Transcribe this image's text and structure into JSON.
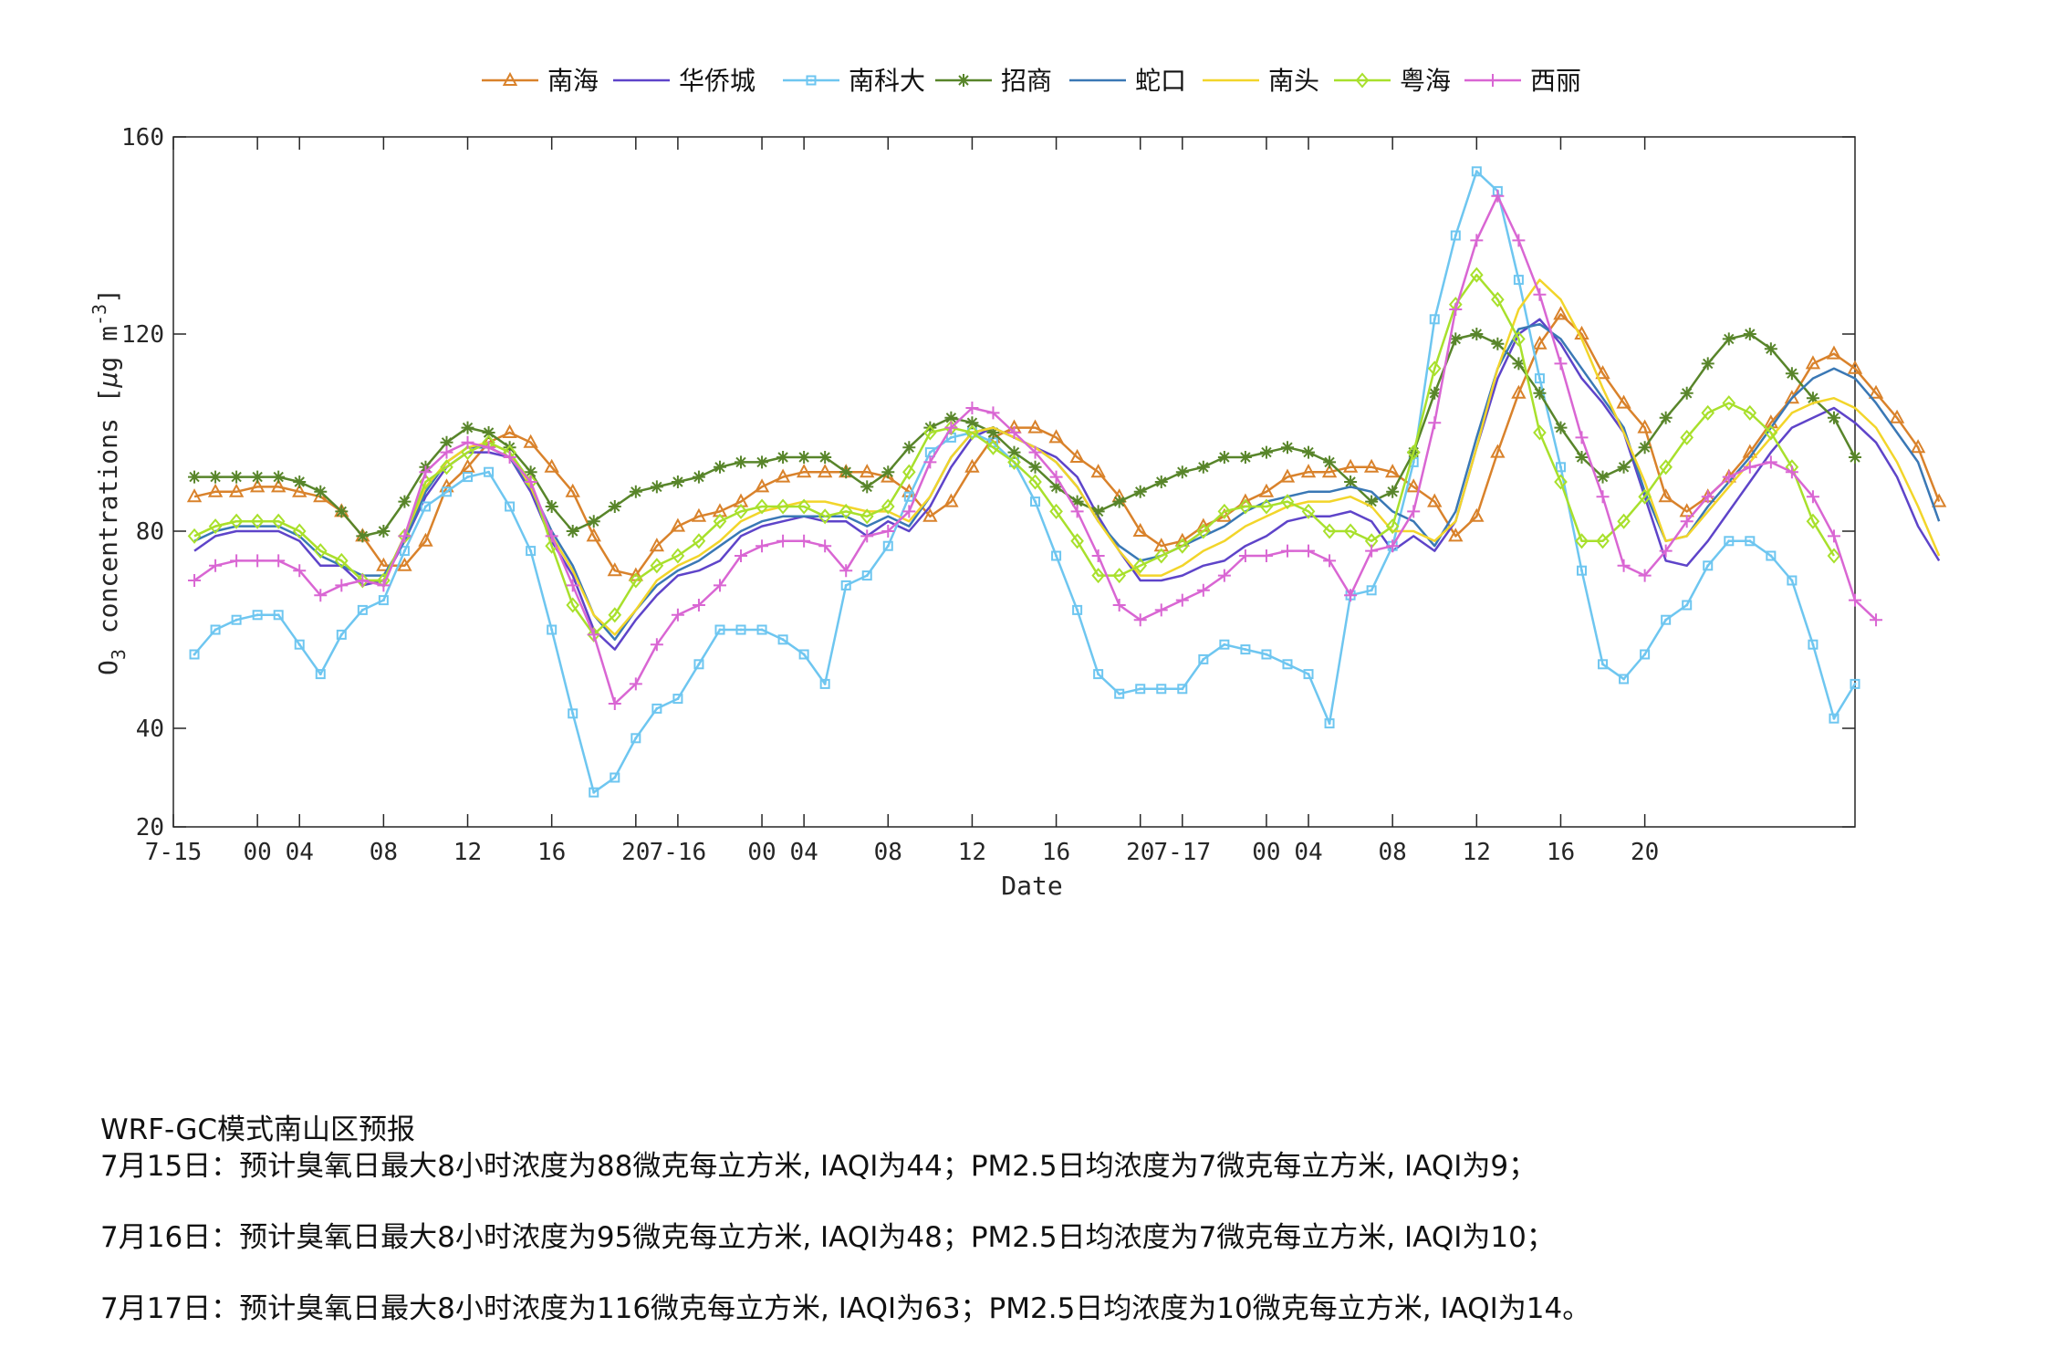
{
  "chart_data": {
    "type": "line",
    "title": "",
    "xlabel": "Date",
    "ylabel": "O",
    "ylabel_sub": "3",
    "ylabel_rest": " concentrations [",
    "ylabel_mu": "μ",
    "ylabel_unit": "g m",
    "ylabel_sup": "-3",
    "ylabel_close": "]",
    "ylim": [
      20,
      160
    ],
    "yticks": [
      20,
      40,
      80,
      120,
      160
    ],
    "xlim": [
      0,
      80
    ],
    "xticks": [
      {
        "x": 0,
        "label": "7-15"
      },
      {
        "x": 4,
        "label": "00"
      },
      {
        "x": 6,
        "label": "04"
      },
      {
        "x": 10,
        "label": "08"
      },
      {
        "x": 14,
        "label": "12"
      },
      {
        "x": 18,
        "label": "16"
      },
      {
        "x": 22,
        "label": "20"
      },
      {
        "x": 24,
        "label": "7-16"
      },
      {
        "x": 28,
        "label": "00"
      },
      {
        "x": 30,
        "label": "04"
      },
      {
        "x": 34,
        "label": "08"
      },
      {
        "x": 38,
        "label": "12"
      },
      {
        "x": 42,
        "label": "16"
      },
      {
        "x": 46,
        "label": "20"
      },
      {
        "x": 48,
        "label": "7-17"
      },
      {
        "x": 52,
        "label": "00"
      },
      {
        "x": 54,
        "label": "04"
      },
      {
        "x": 58,
        "label": "08"
      },
      {
        "x": 62,
        "label": "12"
      },
      {
        "x": 66,
        "label": "16"
      },
      {
        "x": 70,
        "label": "20"
      }
    ],
    "grid": false,
    "legend_position": "top-center",
    "x_start": 1,
    "series": [
      {
        "name": "南海",
        "color": "#D9822B",
        "marker": "triangle",
        "values": [
          87,
          88,
          88,
          89,
          89,
          88,
          87,
          84,
          79,
          73,
          73,
          78,
          89,
          93,
          98,
          100,
          98,
          93,
          88,
          79,
          72,
          71,
          77,
          81,
          83,
          84,
          86,
          89,
          91,
          92,
          92,
          92,
          92,
          91,
          88,
          83,
          86,
          93,
          99,
          101,
          101,
          99,
          95,
          92,
          87,
          80,
          77,
          78,
          81,
          83,
          86,
          88,
          91,
          92,
          92,
          93,
          93,
          92,
          89,
          86,
          79,
          83,
          96,
          108,
          118,
          124,
          120,
          112,
          106,
          101,
          87,
          84,
          87,
          91,
          96,
          102,
          107,
          114,
          116,
          113,
          108,
          103,
          97,
          86
        ]
      },
      {
        "name": "华侨城",
        "color": "#5E44C9",
        "marker": "none",
        "values": [
          76,
          79,
          80,
          80,
          80,
          78,
          73,
          73,
          69,
          70,
          78,
          87,
          93,
          96,
          96,
          95,
          88,
          78,
          71,
          60,
          56,
          62,
          67,
          71,
          72,
          74,
          79,
          81,
          82,
          83,
          82,
          82,
          79,
          82,
          80,
          85,
          93,
          99,
          101,
          99,
          97,
          95,
          91,
          83,
          76,
          70,
          70,
          71,
          73,
          74,
          77,
          79,
          82,
          83,
          83,
          84,
          82,
          76,
          79,
          76,
          82,
          97,
          111,
          120,
          123,
          118,
          111,
          106,
          100,
          87,
          74,
          73,
          78,
          84,
          90,
          96,
          101,
          103,
          105,
          102,
          98,
          91,
          81,
          74
        ]
      },
      {
        "name": "南科大",
        "color": "#6EC6F0",
        "marker": "square",
        "values": [
          55,
          60,
          62,
          63,
          63,
          57,
          51,
          59,
          64,
          66,
          76,
          85,
          88,
          91,
          92,
          85,
          76,
          60,
          43,
          27,
          30,
          38,
          44,
          46,
          53,
          60,
          60,
          60,
          58,
          55,
          49,
          69,
          71,
          77,
          87,
          96,
          99,
          100,
          98,
          94,
          86,
          75,
          64,
          51,
          47,
          48,
          48,
          48,
          54,
          57,
          56,
          55,
          53,
          51,
          41,
          67,
          68,
          77,
          94,
          123,
          140,
          153,
          149,
          131,
          111,
          93,
          72,
          53,
          50,
          55,
          62,
          65,
          73,
          78,
          78,
          75,
          70,
          57,
          42,
          49
        ]
      },
      {
        "name": "招商",
        "color": "#58852A",
        "marker": "star",
        "values": [
          91,
          91,
          91,
          91,
          91,
          90,
          88,
          84,
          79,
          80,
          86,
          93,
          98,
          101,
          100,
          97,
          92,
          85,
          80,
          82,
          85,
          88,
          89,
          90,
          91,
          93,
          94,
          94,
          95,
          95,
          95,
          92,
          89,
          92,
          97,
          101,
          103,
          102,
          100,
          96,
          93,
          89,
          86,
          84,
          86,
          88,
          90,
          92,
          93,
          95,
          95,
          96,
          97,
          96,
          94,
          90,
          86,
          88,
          96,
          108,
          119,
          120,
          118,
          114,
          108,
          101,
          95,
          91,
          93,
          97,
          103,
          108,
          114,
          119,
          120,
          117,
          112,
          107,
          103,
          95
        ]
      },
      {
        "name": "蛇口",
        "color": "#3A78B5",
        "marker": "none",
        "values": [
          78,
          80,
          81,
          81,
          81,
          79,
          75,
          73,
          71,
          71,
          78,
          88,
          94,
          97,
          97,
          95,
          89,
          80,
          73,
          63,
          58,
          64,
          69,
          72,
          74,
          77,
          80,
          82,
          83,
          83,
          83,
          83,
          81,
          83,
          81,
          87,
          95,
          100,
          101,
          99,
          97,
          94,
          89,
          82,
          77,
          74,
          75,
          77,
          79,
          81,
          84,
          86,
          87,
          88,
          88,
          89,
          88,
          84,
          82,
          77,
          84,
          99,
          113,
          121,
          122,
          119,
          113,
          107,
          101,
          88,
          78,
          79,
          85,
          90,
          95,
          101,
          107,
          111,
          113,
          111,
          106,
          100,
          94,
          82
        ]
      },
      {
        "name": "南头",
        "color": "#F2D52A",
        "marker": "none",
        "values": [
          79,
          81,
          82,
          82,
          82,
          80,
          76,
          74,
          70,
          70,
          79,
          89,
          94,
          97,
          98,
          96,
          89,
          79,
          72,
          63,
          59,
          64,
          70,
          73,
          75,
          78,
          82,
          84,
          85,
          86,
          86,
          85,
          84,
          84,
          82,
          87,
          95,
          100,
          101,
          99,
          97,
          94,
          89,
          82,
          76,
          71,
          71,
          73,
          76,
          78,
          81,
          83,
          85,
          86,
          86,
          87,
          85,
          80,
          80,
          78,
          82,
          97,
          113,
          125,
          131,
          127,
          119,
          109,
          100,
          90,
          78,
          79,
          84,
          89,
          94,
          99,
          104,
          106,
          107,
          105,
          101,
          94,
          85,
          75
        ]
      },
      {
        "name": "粤海",
        "color": "#A8E02C",
        "marker": "diamond",
        "values": [
          79,
          81,
          82,
          82,
          82,
          80,
          76,
          74,
          70,
          70,
          79,
          90,
          93,
          96,
          98,
          96,
          90,
          77,
          65,
          59,
          63,
          70,
          73,
          75,
          78,
          82,
          84,
          85,
          85,
          85,
          83,
          84,
          83,
          85,
          92,
          100,
          101,
          100,
          97,
          94,
          90,
          84,
          78,
          71,
          71,
          73,
          75,
          77,
          80,
          84,
          85,
          85,
          86,
          84,
          80,
          80,
          78,
          81,
          96,
          113,
          126,
          132,
          127,
          119,
          100,
          90,
          78,
          78,
          82,
          87,
          93,
          99,
          104,
          106,
          104,
          100,
          93,
          82,
          75
        ]
      },
      {
        "name": "西丽",
        "color": "#D966D3",
        "marker": "plus",
        "values": [
          70,
          73,
          74,
          74,
          74,
          72,
          67,
          69,
          70,
          69,
          79,
          92,
          96,
          98,
          97,
          95,
          90,
          79,
          69,
          59,
          45,
          49,
          57,
          63,
          65,
          69,
          75,
          77,
          78,
          78,
          77,
          72,
          79,
          80,
          84,
          94,
          101,
          105,
          104,
          100,
          96,
          91,
          84,
          75,
          65,
          62,
          64,
          66,
          68,
          71,
          75,
          75,
          76,
          76,
          74,
          67,
          76,
          77,
          84,
          102,
          125,
          139,
          148,
          139,
          128,
          114,
          99,
          87,
          73,
          71,
          76,
          82,
          87,
          91,
          93,
          94,
          92,
          87,
          79,
          66,
          62
        ]
      }
    ]
  },
  "notes": {
    "title": "WRF-GC模式南山区预报",
    "line1": "7月15日：预计臭氧日最大8小时浓度为88微克每立方米, IAQI为44；PM2.5日均浓度为7微克每立方米, IAQI为9；",
    "line2": "7月16日：预计臭氧日最大8小时浓度为95微克每立方米, IAQI为48；PM2.5日均浓度为7微克每立方米, IAQI为10；",
    "line3": "7月17日：预计臭氧日最大8小时浓度为116微克每立方米, IAQI为63；PM2.5日均浓度为10微克每立方米, IAQI为14。"
  }
}
